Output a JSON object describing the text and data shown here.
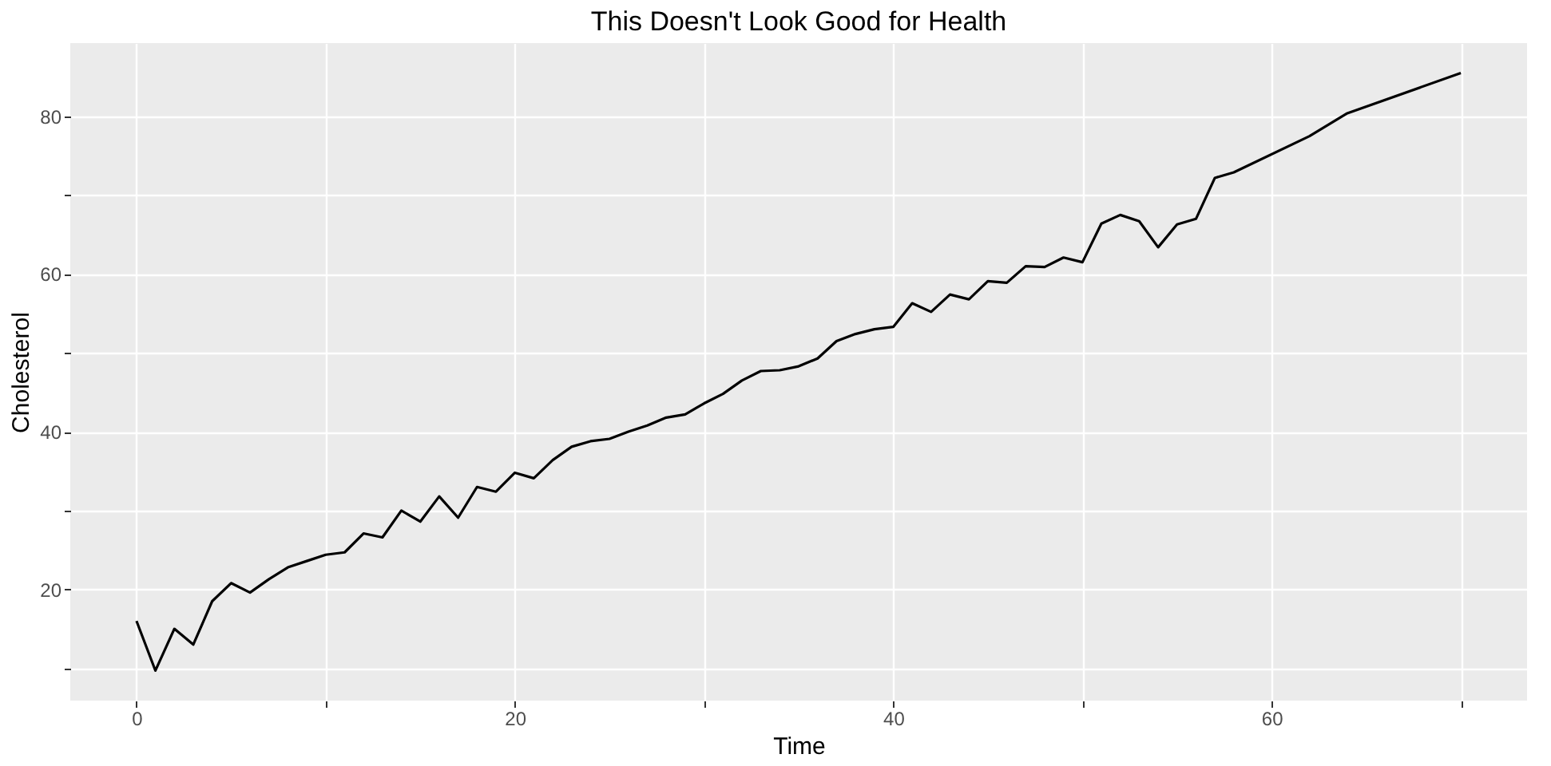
{
  "chart_data": {
    "type": "line",
    "title": "This Doesn't Look Good for Health",
    "xlabel": "Time",
    "ylabel": "Cholesterol",
    "x": [
      0,
      1,
      2,
      3,
      4,
      5,
      6,
      7,
      8,
      9,
      10,
      11,
      12,
      13,
      14,
      15,
      16,
      17,
      18,
      19,
      20,
      21,
      22,
      23,
      24,
      25,
      26,
      27,
      28,
      29,
      30,
      31,
      32,
      33,
      34,
      35,
      36,
      37,
      38,
      39,
      40,
      41,
      42,
      43,
      44,
      45,
      46,
      47,
      48,
      49,
      50,
      51,
      52,
      53,
      54,
      55,
      56,
      57,
      58,
      62,
      64,
      70
    ],
    "series": [
      {
        "color": "#000000",
        "values": [
          16,
          9.7,
          15,
          13,
          18.5,
          20.8,
          19.6,
          21.3,
          22.8,
          23.6,
          24.4,
          24.7,
          27.1,
          26.6,
          30,
          28.6,
          31.8,
          29.1,
          33,
          32.4,
          34.8,
          34.1,
          36.4,
          38.1,
          38.8,
          39.1,
          40,
          40.8,
          41.8,
          42.2,
          43.6,
          44.8,
          46.5,
          47.7,
          47.8,
          48.3,
          49.3,
          51.5,
          52.4,
          53,
          53.3,
          56.3,
          55.2,
          57.4,
          56.8,
          59.1,
          58.9,
          61,
          60.9,
          62.1,
          61.5,
          66.4,
          67.5,
          66.7,
          63.4,
          66.3,
          67,
          72.2,
          72.9,
          77.5,
          80.4,
          85.5
        ]
      }
    ],
    "xlim": [
      -3.5,
      73.5
    ],
    "ylim": [
      5.9,
      89.3
    ],
    "xticks": [
      0,
      {
        "value": 10,
        "label": null
      },
      20,
      {
        "value": 30,
        "label": null
      },
      40,
      {
        "value": 50,
        "label": null
      },
      60,
      {
        "value": 70,
        "label": null
      }
    ],
    "yticks": [
      {
        "value": 10,
        "label": null
      },
      20,
      {
        "value": 30,
        "label": null
      },
      40,
      {
        "value": 50,
        "label": null
      },
      60,
      {
        "value": 70,
        "label": null
      },
      80
    ],
    "grid": true,
    "marker": "none",
    "line_style": "solid"
  }
}
